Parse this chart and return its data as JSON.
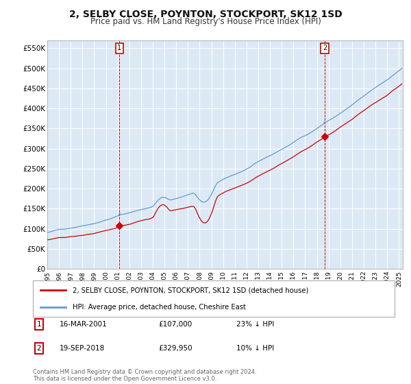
{
  "title": "2, SELBY CLOSE, POYNTON, STOCKPORT, SK12 1SD",
  "subtitle": "Price paid vs. HM Land Registry's House Price Index (HPI)",
  "title_fontsize": 10,
  "subtitle_fontsize": 8.5,
  "fig_bg_color": "#ffffff",
  "plot_bg_color": "#dce9f5",
  "red_line_color": "#cc0000",
  "blue_line_color": "#6699cc",
  "marker_color": "#cc0000",
  "dashed_line_color": "#cc0000",
  "grid_color": "#ffffff",
  "yticks": [
    0,
    50000,
    100000,
    150000,
    200000,
    250000,
    300000,
    350000,
    400000,
    450000,
    500000,
    550000
  ],
  "ytick_labels": [
    "£0",
    "£50K",
    "£100K",
    "£150K",
    "£200K",
    "£250K",
    "£300K",
    "£350K",
    "£400K",
    "£450K",
    "£500K",
    "£550K"
  ],
  "legend_red_label": "2, SELBY CLOSE, POYNTON, STOCKPORT, SK12 1SD (detached house)",
  "legend_blue_label": "HPI: Average price, detached house, Cheshire East",
  "footer_text": "Contains HM Land Registry data © Crown copyright and database right 2024.\nThis data is licensed under the Open Government Licence v3.0.",
  "table_row1": [
    "1",
    "16-MAR-2001",
    "£107,000",
    "23% ↓ HPI"
  ],
  "table_row2": [
    "2",
    "19-SEP-2018",
    "£329,950",
    "10% ↓ HPI"
  ]
}
